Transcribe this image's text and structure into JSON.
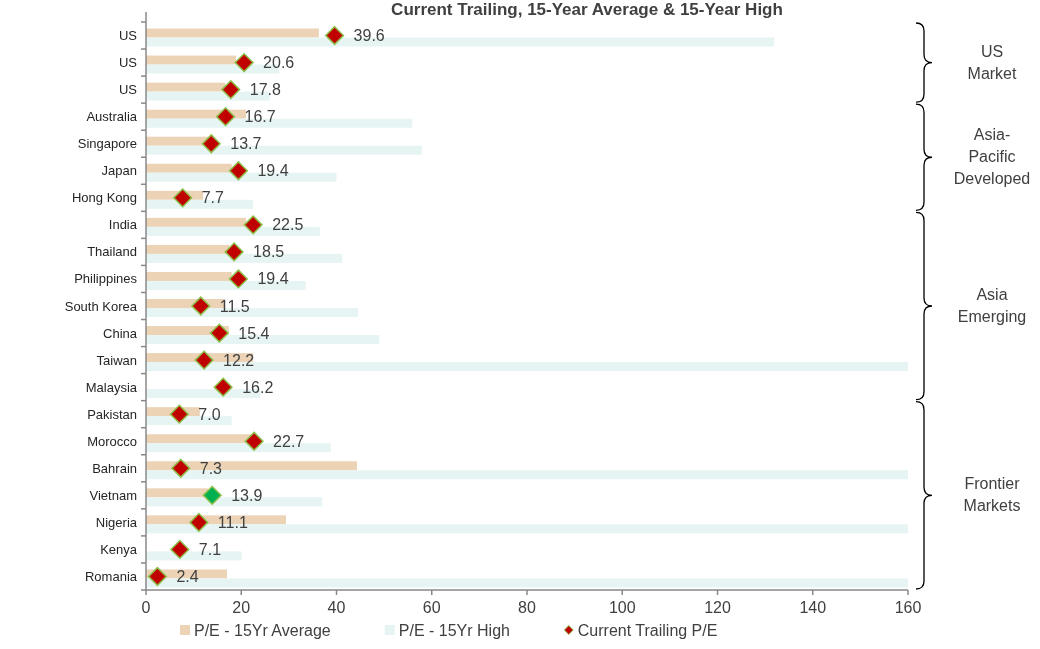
{
  "chart_data": {
    "type": "bar",
    "orientation": "horizontal",
    "title": "Current Trailing, 15-Year Average & 15-Year High",
    "categories": [
      "US",
      "US",
      "US",
      "Australia",
      "Singapore",
      "Japan",
      "Hong Kong",
      "India",
      "Thailand",
      "Philippines",
      "South Korea",
      "China",
      "Taiwan",
      "Malaysia",
      "Pakistan",
      "Morocco",
      "Bahrain",
      "Vietnam",
      "Nigeria",
      "Kenya",
      "Romania"
    ],
    "series": [
      {
        "name": "P/E - 15Yr Average",
        "color": "#ecd3b6",
        "values": [
          36.3,
          18.9,
          16.6,
          21,
          13,
          18,
          12,
          21,
          17.5,
          18,
          16.6,
          17.4,
          22.5,
          null,
          11.3,
          22,
          44.3,
          13,
          29.4,
          null,
          17
        ]
      },
      {
        "name": "P/E - 15Yr High",
        "color": "#e6f4f3",
        "values": [
          131.9,
          28,
          26,
          55.9,
          57.9,
          40,
          22.5,
          36.5,
          41.2,
          33.5,
          44.5,
          49,
          160,
          24,
          18,
          38.8,
          160,
          37,
          160,
          20.1,
          160
        ]
      },
      {
        "name": "Current Trailing P/E",
        "type": "scatter",
        "color": "#c00000",
        "colors": [
          "#c00000",
          "#c00000",
          "#c00000",
          "#c00000",
          "#c00000",
          "#c00000",
          "#c00000",
          "#c00000",
          "#c00000",
          "#c00000",
          "#c00000",
          "#c00000",
          "#c00000",
          "#c00000",
          "#c00000",
          "#c00000",
          "#c00000",
          "#00b050",
          "#c00000",
          "#c00000",
          "#c00000"
        ],
        "values": [
          39.6,
          20.6,
          17.8,
          16.7,
          13.7,
          19.4,
          7.7,
          22.5,
          18.5,
          19.4,
          11.5,
          15.4,
          12.2,
          16.2,
          7.0,
          22.7,
          7.3,
          13.9,
          11.1,
          7.1,
          2.4
        ],
        "value_labels": [
          "39.6",
          "20.6",
          "17.8",
          "16.7",
          "13.7",
          "19.4",
          "7.7",
          "22.5",
          "18.5",
          "19.4",
          "11.5",
          "15.4",
          "12.2",
          "16.2",
          "7.0",
          "22.7",
          "7.3",
          "13.9",
          "11.1",
          "7.1",
          "2.4"
        ]
      }
    ],
    "xlim": [
      0,
      160
    ],
    "xticks": [
      0,
      20,
      40,
      60,
      80,
      100,
      120,
      140,
      160
    ],
    "marker": "diamond",
    "legend": "bottom",
    "grid": false,
    "annotations": [
      "US Market",
      "Asia-Pacific Developed",
      "Asia Emerging",
      "Frontier Markets"
    ]
  }
}
